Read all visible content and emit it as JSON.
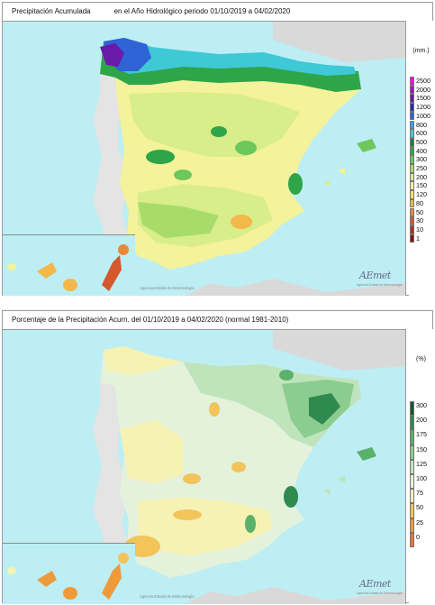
{
  "panel1": {
    "title_left": "Precipitación Acumulada",
    "title_right": "en el Año Hidrológico  periodo 01/10/2019 a 04/02/2020",
    "unit": "(mm.)",
    "legend": [
      {
        "label": "2500",
        "color": "#f000f0"
      },
      {
        "label": "2000",
        "color": "#b000c8"
      },
      {
        "label": "1500",
        "color": "#6a1aa8"
      },
      {
        "label": "1200",
        "color": "#2a2ab0"
      },
      {
        "label": "1000",
        "color": "#2f63d6"
      },
      {
        "label": "800",
        "color": "#3d9be6"
      },
      {
        "label": "600",
        "color": "#3fc8d6"
      },
      {
        "label": "500",
        "color": "#1e7d3a"
      },
      {
        "label": "400",
        "color": "#2fa54a"
      },
      {
        "label": "300",
        "color": "#6cc85a"
      },
      {
        "label": "250",
        "color": "#a8dc6a"
      },
      {
        "label": "200",
        "color": "#d8ee8a"
      },
      {
        "label": "150",
        "color": "#f4f29a"
      },
      {
        "label": "120",
        "color": "#f6e070"
      },
      {
        "label": "80",
        "color": "#f2b84a"
      },
      {
        "label": "50",
        "color": "#e8883a"
      },
      {
        "label": "30",
        "color": "#d4582c"
      },
      {
        "label": "10",
        "color": "#b0301e"
      },
      {
        "label": "1",
        "color": "#7a1410"
      }
    ]
  },
  "panel2": {
    "title": "Porcentaje de la Precipitación Acurn. del 01/10/2019 a  04/02/2020  (normal 1981-2010)",
    "unit": "(%)",
    "legend": [
      {
        "label": "300",
        "color": "#0e5a2e"
      },
      {
        "label": "200",
        "color": "#2e8a4e"
      },
      {
        "label": "175",
        "color": "#5bb06a"
      },
      {
        "label": "150",
        "color": "#8ccc8e"
      },
      {
        "label": "125",
        "color": "#bfe4bc"
      },
      {
        "label": "100",
        "color": "#e4f2dc"
      },
      {
        "label": "75",
        "color": "#f6f2b4"
      },
      {
        "label": "50",
        "color": "#f2c45a"
      },
      {
        "label": "25",
        "color": "#ee9a3a"
      },
      {
        "label": "0",
        "color": "#e8743a"
      }
    ]
  },
  "branding": {
    "logo": "AEmet",
    "logo_sub": "Agencia Estatal de Meteorología",
    "agency_label": "Agencia Estatal de Meteorología"
  },
  "colors": {
    "sea": "#bdeef4",
    "land_outside": "#d9d9d9"
  }
}
